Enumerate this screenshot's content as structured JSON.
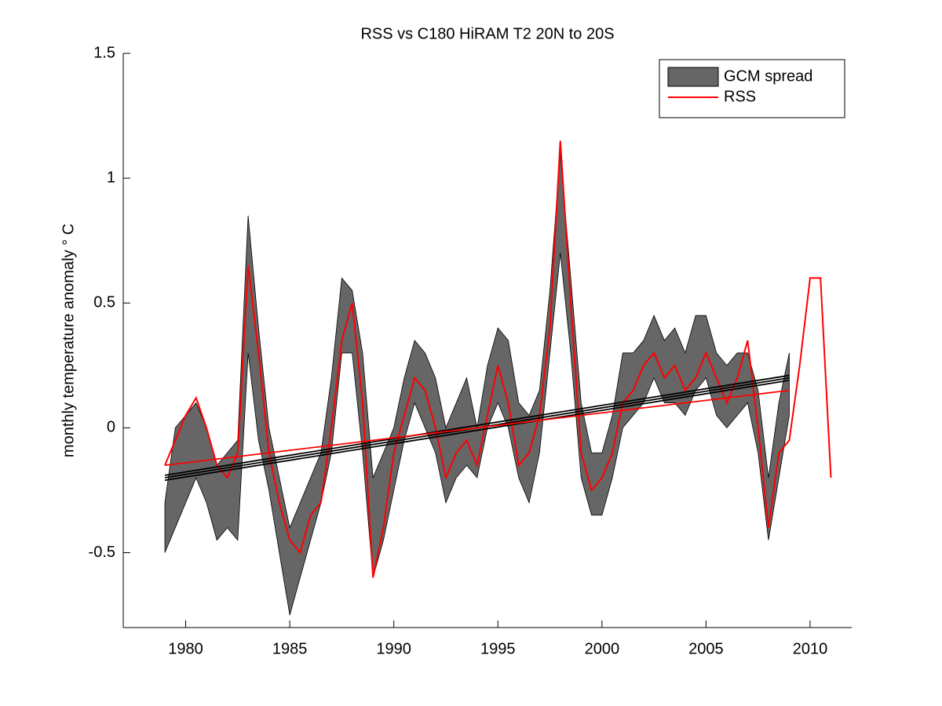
{
  "chart_data": {
    "type": "line",
    "title": "RSS vs C180 HiRAM T2  20N to 20S",
    "ylabel": "monthly temperature anomaly  ° C",
    "xlim": [
      1977,
      2012
    ],
    "xticks": [
      1980,
      1985,
      1990,
      1995,
      2000,
      2005,
      2010
    ],
    "ylim": [
      -0.8,
      1.5
    ],
    "yticks": [
      -0.5,
      0,
      0.5,
      1,
      1.5
    ],
    "legend": "northeast",
    "series": [
      {
        "name": "GCM spread",
        "style": "band",
        "color": "#666666",
        "x": [
          1979,
          1979.5,
          1980,
          1980.5,
          1981,
          1981.5,
          1982,
          1982.5,
          1983,
          1983.5,
          1984,
          1984.5,
          1985,
          1985.5,
          1986,
          1986.5,
          1987,
          1987.5,
          1988,
          1988.5,
          1989,
          1989.5,
          1990,
          1990.5,
          1991,
          1991.5,
          1992,
          1992.5,
          1993,
          1993.5,
          1994,
          1994.5,
          1995,
          1995.5,
          1996,
          1996.5,
          1997,
          1997.5,
          1998,
          1998.5,
          1999,
          1999.5,
          2000,
          2000.5,
          2001,
          2001.5,
          2002,
          2002.5,
          2003,
          2003.5,
          2004,
          2004.5,
          2005,
          2005.5,
          2006,
          2006.5,
          2007,
          2007.5,
          2008,
          2008.5,
          2009
        ],
        "lower": [
          -0.5,
          -0.4,
          -0.3,
          -0.2,
          -0.3,
          -0.45,
          -0.4,
          -0.45,
          0.3,
          -0.05,
          -0.25,
          -0.5,
          -0.75,
          -0.6,
          -0.45,
          -0.3,
          -0.1,
          0.3,
          0.3,
          -0.1,
          -0.6,
          -0.45,
          -0.25,
          -0.05,
          0.1,
          0,
          -0.1,
          -0.3,
          -0.2,
          -0.15,
          -0.2,
          0,
          0.1,
          0,
          -0.2,
          -0.3,
          -0.1,
          0.3,
          0.7,
          0.3,
          -0.2,
          -0.35,
          -0.35,
          -0.2,
          0,
          0.05,
          0.1,
          0.2,
          0.1,
          0.1,
          0.05,
          0.15,
          0.2,
          0.05,
          0,
          0.05,
          0.1,
          -0.1,
          -0.45,
          -0.2,
          0.05
        ],
        "upper": [
          -0.3,
          0,
          0.05,
          0.1,
          0,
          -0.15,
          -0.1,
          -0.05,
          0.85,
          0.4,
          0,
          -0.2,
          -0.4,
          -0.3,
          -0.2,
          -0.1,
          0.2,
          0.6,
          0.55,
          0.3,
          -0.2,
          -0.1,
          0,
          0.2,
          0.35,
          0.3,
          0.2,
          0,
          0.1,
          0.2,
          0,
          0.25,
          0.4,
          0.35,
          0.1,
          0.05,
          0.15,
          0.55,
          1.1,
          0.6,
          0.1,
          -0.1,
          -0.1,
          0.05,
          0.3,
          0.3,
          0.35,
          0.45,
          0.35,
          0.4,
          0.3,
          0.45,
          0.45,
          0.3,
          0.25,
          0.3,
          0.3,
          0.15,
          -0.2,
          0.1,
          0.3
        ]
      },
      {
        "name": "RSS",
        "style": "line",
        "color": "#ff0000",
        "x": [
          1979,
          1979.5,
          1980,
          1980.5,
          1981,
          1981.5,
          1982,
          1982.5,
          1983,
          1983.5,
          1984,
          1984.5,
          1985,
          1985.5,
          1986,
          1986.5,
          1987,
          1987.5,
          1988,
          1988.5,
          1989,
          1989.5,
          1990,
          1990.5,
          1991,
          1991.5,
          1992,
          1992.5,
          1993,
          1993.5,
          1994,
          1994.5,
          1995,
          1995.5,
          1996,
          1996.5,
          1997,
          1997.5,
          1998,
          1998.5,
          1999,
          1999.5,
          2000,
          2000.5,
          2001,
          2001.5,
          2002,
          2002.5,
          2003,
          2003.5,
          2004,
          2004.5,
          2005,
          2005.5,
          2006,
          2006.5,
          2007,
          2007.5,
          2008,
          2008.5,
          2009,
          2009.5,
          2010,
          2010.5,
          2011
        ],
        "values": [
          -0.15,
          -0.05,
          0.05,
          0.12,
          0,
          -0.15,
          -0.2,
          -0.1,
          0.65,
          0.3,
          -0.1,
          -0.3,
          -0.45,
          -0.5,
          -0.35,
          -0.3,
          0,
          0.35,
          0.5,
          0.1,
          -0.6,
          -0.4,
          -0.1,
          0.05,
          0.2,
          0.15,
          0,
          -0.2,
          -0.1,
          -0.05,
          -0.15,
          0.05,
          0.25,
          0.1,
          -0.15,
          -0.1,
          0.05,
          0.4,
          1.15,
          0.5,
          -0.1,
          -0.25,
          -0.2,
          -0.1,
          0.1,
          0.15,
          0.25,
          0.3,
          0.2,
          0.25,
          0.15,
          0.2,
          0.3,
          0.2,
          0.1,
          0.2,
          0.35,
          0,
          -0.4,
          -0.1,
          -0.05,
          0.25,
          0.6,
          0.6,
          -0.2
        ]
      },
      {
        "style": "line",
        "color": "#000000",
        "x": [
          1979,
          2009
        ],
        "values": [
          -0.21,
          0.19
        ]
      },
      {
        "style": "line",
        "color": "#000000",
        "x": [
          1979,
          2009
        ],
        "values": [
          -0.19,
          0.21
        ]
      },
      {
        "style": "line",
        "color": "#000000",
        "x": [
          1979,
          2009
        ],
        "values": [
          -0.2,
          0.2
        ]
      },
      {
        "style": "line",
        "color": "#ff0000",
        "x": [
          1979,
          2009
        ],
        "values": [
          -0.15,
          0.15
        ]
      }
    ]
  }
}
